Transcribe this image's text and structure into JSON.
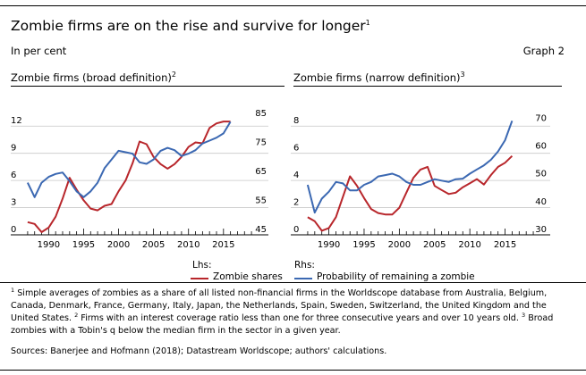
{
  "header": {
    "title": "Zombie firms are on the rise and survive for longer",
    "title_sup": "1",
    "subtitle": "In per cent",
    "graph_label": "Graph 2"
  },
  "legend": {
    "lhs_label": "Lhs:",
    "rhs_label": "Rhs:",
    "zombie_shares": "Zombie shares",
    "probability": "Probability of remaining a zombie"
  },
  "colors": {
    "red": "#b8262b",
    "blue": "#3b68b2",
    "grid": "#c8c8c8"
  },
  "footnote": {
    "n1": "1",
    "t1": "Simple averages of zombies as a share of all listed non-financial firms in the Worldscope database from Australia, Belgium, Canada, Denmark, France, Germany, Italy, Japan, the Netherlands, Spain, Sweden, Switzerland, the United Kingdom and the United States.",
    "n2": "2",
    "t2": "Firms with an interest coverage ratio less than one for three consecutive years and over 10 years old.",
    "n3": "3",
    "t3": "Broad zombies with a Tobin's q below the median firm in the sector in a given year."
  },
  "sources": "Sources: Banerjee and Hofmann (2018); Datastream Worldscope; authors' calculations.",
  "chart_data": [
    {
      "type": "line",
      "title": "Zombie firms (broad definition)",
      "title_sup": "2",
      "x_ticks": [
        1990,
        1995,
        2000,
        2005,
        2010,
        2015
      ],
      "xlim": [
        1986.5,
        2019.5
      ],
      "left_axis": {
        "ticks": [
          "0",
          "3",
          "6",
          "9",
          "12"
        ],
        "values": [
          0,
          3,
          6,
          9,
          12
        ],
        "ylim": [
          0,
          13.5
        ]
      },
      "right_axis": {
        "ticks": [
          "45",
          "55",
          "65",
          "75",
          "85"
        ],
        "values": [
          45,
          55,
          65,
          75,
          85
        ],
        "ylim": [
          45,
          87.2
        ]
      },
      "series": [
        {
          "name": "Zombie shares",
          "axis": "left",
          "color": "#b8262b",
          "x": [
            1987,
            1988,
            1989,
            1990,
            1991,
            1992,
            1993,
            1994,
            1995,
            1996,
            1997,
            1998,
            1999,
            2000,
            2001,
            2002,
            2003,
            2004,
            2005,
            2006,
            2007,
            2008,
            2009,
            2010,
            2011,
            2012,
            2013,
            2014,
            2015,
            2016
          ],
          "y": [
            1.4,
            1.2,
            0.3,
            0.8,
            2.0,
            4.0,
            6.3,
            5.0,
            3.8,
            2.9,
            2.7,
            3.2,
            3.4,
            4.8,
            6.0,
            7.9,
            10.3,
            10.0,
            8.6,
            7.8,
            7.3,
            7.8,
            8.6,
            9.7,
            10.2,
            10.1,
            11.8,
            12.3,
            12.5,
            12.5
          ]
        },
        {
          "name": "Probability of remaining a zombie",
          "axis": "right",
          "color": "#3b68b2",
          "x": [
            1987,
            1988,
            1989,
            1990,
            1991,
            1992,
            1993,
            1994,
            1995,
            1996,
            1997,
            1998,
            1999,
            2000,
            2001,
            2002,
            2003,
            2004,
            2005,
            2006,
            2007,
            2008,
            2009,
            2010,
            2011,
            2012,
            2013,
            2014,
            2015,
            2016
          ],
          "y": [
            63,
            58,
            63,
            65,
            66,
            66.5,
            63.5,
            60,
            58,
            60,
            63,
            68,
            71,
            74,
            73.5,
            73,
            70,
            69.5,
            71,
            74,
            75,
            74.2,
            72.2,
            73,
            74.2,
            76.5,
            77.5,
            78.5,
            80,
            84
          ]
        }
      ]
    },
    {
      "type": "line",
      "title": "Zombie firms (narrow definition)",
      "title_sup": "3",
      "x_ticks": [
        1990,
        1995,
        2000,
        2005,
        2010,
        2015
      ],
      "xlim": [
        1986.5,
        2019.5
      ],
      "left_axis": {
        "ticks": [
          "0",
          "2",
          "4",
          "6",
          "8"
        ],
        "values": [
          0,
          2,
          4,
          6,
          8
        ],
        "ylim": [
          0,
          9
        ]
      },
      "right_axis": {
        "ticks": [
          "30",
          "40",
          "50",
          "60",
          "70"
        ],
        "values": [
          30,
          40,
          50,
          60,
          70
        ],
        "ylim": [
          30,
          74
        ]
      },
      "series": [
        {
          "name": "Zombie shares",
          "axis": "left",
          "color": "#b8262b",
          "x": [
            1987,
            1988,
            1989,
            1990,
            1991,
            1992,
            1993,
            1994,
            1995,
            1996,
            1997,
            1998,
            1999,
            2000,
            2001,
            2002,
            2003,
            2004,
            2005,
            2006,
            2007,
            2008,
            2009,
            2010,
            2011,
            2012,
            2013,
            2014,
            2015,
            2016
          ],
          "y": [
            1.3,
            1.0,
            0.3,
            0.5,
            1.3,
            2.8,
            4.3,
            3.6,
            2.7,
            1.9,
            1.6,
            1.5,
            1.5,
            2.0,
            3.1,
            4.2,
            4.8,
            5.0,
            3.6,
            3.3,
            3.0,
            3.1,
            3.5,
            3.8,
            4.1,
            3.7,
            4.4,
            5.0,
            5.3,
            5.8
          ]
        },
        {
          "name": "Probability of remaining a zombie",
          "axis": "right",
          "color": "#3b68b2",
          "x": [
            1987,
            1988,
            1989,
            1990,
            1991,
            1992,
            1993,
            1994,
            1995,
            1996,
            1997,
            1998,
            1999,
            2000,
            2001,
            2002,
            2003,
            2004,
            2005,
            2006,
            2007,
            2008,
            2009,
            2010,
            2011,
            2012,
            2013,
            2014,
            2015,
            2016
          ],
          "y": [
            48,
            38,
            43,
            45.5,
            49,
            48.5,
            46,
            46,
            48,
            49,
            51,
            51.5,
            52,
            51,
            49,
            48,
            48,
            49,
            50,
            49.5,
            49,
            50,
            50.2,
            52,
            53.5,
            55,
            57,
            60,
            64,
            71
          ]
        }
      ]
    }
  ]
}
